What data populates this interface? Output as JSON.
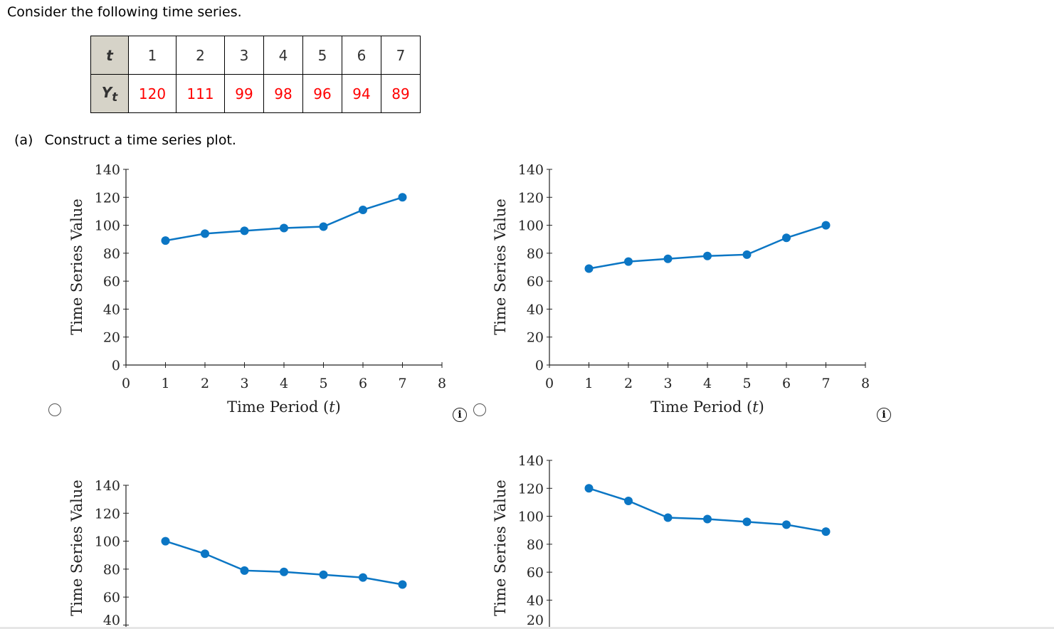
{
  "intro": "Consider the following time series.",
  "table": {
    "t_header": "t",
    "y_header": "Y",
    "y_sub": "t",
    "t": [
      "1",
      "2",
      "3",
      "4",
      "5",
      "6",
      "7"
    ],
    "y": [
      "120",
      "111",
      "99",
      "98",
      "96",
      "94",
      "89"
    ]
  },
  "part_a": {
    "label": "(a)",
    "text": "Construct a time series plot."
  },
  "info_icon": "i",
  "colors": {
    "series": "#0b76c4",
    "value_text": "#ff0000",
    "header_bg": "#d6d3c8"
  },
  "chart_data": [
    {
      "type": "line",
      "xlabel": "Time Period (t)",
      "ylabel": "Time Series Value",
      "x": [
        1,
        2,
        3,
        4,
        5,
        6,
        7
      ],
      "y": [
        89,
        94,
        96,
        98,
        99,
        111,
        120
      ],
      "xlim": [
        0,
        8
      ],
      "ylim": [
        0,
        140
      ],
      "xticks": [
        0,
        1,
        2,
        3,
        4,
        5,
        6,
        7,
        8
      ],
      "yticks": [
        0,
        20,
        40,
        60,
        80,
        100,
        120,
        140
      ],
      "marker": "circle"
    },
    {
      "type": "line",
      "xlabel": "Time Period (t)",
      "ylabel": "Time Series Value",
      "x": [
        1,
        2,
        3,
        4,
        5,
        6,
        7
      ],
      "y": [
        69,
        74,
        76,
        78,
        79,
        91,
        100
      ],
      "xlim": [
        0,
        8
      ],
      "ylim": [
        0,
        140
      ],
      "xticks": [
        0,
        1,
        2,
        3,
        4,
        5,
        6,
        7,
        8
      ],
      "yticks": [
        0,
        20,
        40,
        60,
        80,
        100,
        120,
        140
      ],
      "marker": "circle"
    },
    {
      "type": "line",
      "xlabel": "",
      "ylabel": "Time Series Value",
      "x": [
        1,
        2,
        3,
        4,
        5,
        6,
        7
      ],
      "y": [
        100,
        91,
        79,
        78,
        76,
        74,
        69
      ],
      "xlim": [
        0,
        8
      ],
      "ylim": [
        0,
        140
      ],
      "xticks": [],
      "yticks": [
        40,
        60,
        80,
        100,
        120,
        140
      ],
      "marker": "circle"
    },
    {
      "type": "line",
      "xlabel": "",
      "ylabel": "Time Series Value",
      "x": [
        1,
        2,
        3,
        4,
        5,
        6,
        7
      ],
      "y": [
        120,
        111,
        99,
        98,
        96,
        94,
        89
      ],
      "xlim": [
        0,
        8
      ],
      "ylim": [
        0,
        140
      ],
      "xticks": [],
      "yticks": [
        20,
        40,
        60,
        80,
        100,
        120,
        140
      ],
      "marker": "circle"
    }
  ]
}
